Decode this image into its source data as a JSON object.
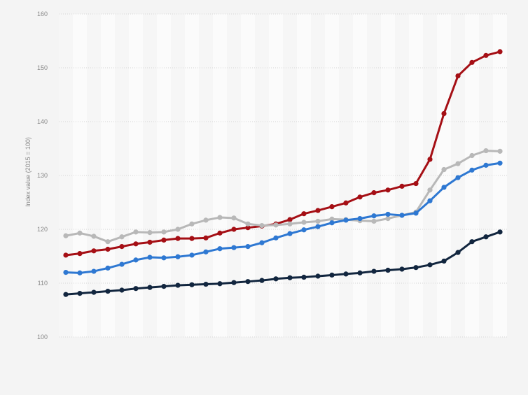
{
  "chart_data": {
    "type": "line",
    "title": "",
    "xlabel": "",
    "ylabel": "Index value (2015 = 100)",
    "ylim": [
      100,
      160
    ],
    "yticks": [
      100,
      110,
      120,
      130,
      140,
      150,
      160
    ],
    "grid": true,
    "legend": "none",
    "x": [
      1,
      2,
      3,
      4,
      5,
      6,
      7,
      8,
      9,
      10,
      11,
      12,
      13,
      14,
      15,
      16,
      17,
      18,
      19,
      20,
      21,
      22,
      23,
      24,
      25,
      26,
      27,
      28,
      29,
      30,
      31,
      32
    ],
    "series": [
      {
        "color": "#a50f15",
        "values": [
          115.2,
          115.5,
          116.0,
          116.3,
          116.8,
          117.3,
          117.6,
          118.0,
          118.3,
          118.3,
          118.4,
          119.3,
          120.0,
          120.3,
          120.6,
          121.0,
          121.8,
          122.9,
          123.5,
          124.2,
          124.9,
          126.0,
          126.8,
          127.3,
          128.0,
          128.5,
          133.0,
          141.5,
          148.5,
          151.0,
          152.3,
          153.0
        ]
      },
      {
        "color": "#b8b8b8",
        "values": [
          118.8,
          119.3,
          118.7,
          117.7,
          118.6,
          119.5,
          119.4,
          119.5,
          120.0,
          121.0,
          121.7,
          122.2,
          122.1,
          121.0,
          120.7,
          120.8,
          121.0,
          121.3,
          121.5,
          121.9,
          121.8,
          121.6,
          121.5,
          122.0,
          122.6,
          123.2,
          127.3,
          131.1,
          132.2,
          133.7,
          134.6,
          134.5
        ]
      },
      {
        "color": "#2e78d2",
        "values": [
          112.0,
          111.9,
          112.2,
          112.8,
          113.5,
          114.3,
          114.8,
          114.7,
          114.9,
          115.2,
          115.8,
          116.4,
          116.6,
          116.8,
          117.5,
          118.4,
          119.2,
          119.9,
          120.5,
          121.2,
          121.7,
          122.0,
          122.5,
          122.8,
          122.6,
          123.0,
          125.3,
          127.8,
          129.6,
          131.0,
          131.9,
          132.3
        ]
      },
      {
        "color": "#12263f",
        "values": [
          107.9,
          108.1,
          108.3,
          108.5,
          108.7,
          109.0,
          109.2,
          109.4,
          109.6,
          109.7,
          109.8,
          109.9,
          110.1,
          110.3,
          110.5,
          110.8,
          111.0,
          111.1,
          111.3,
          111.5,
          111.7,
          111.9,
          112.2,
          112.4,
          112.6,
          112.9,
          113.4,
          114.1,
          115.7,
          117.7,
          118.6,
          119.5
        ]
      }
    ]
  }
}
